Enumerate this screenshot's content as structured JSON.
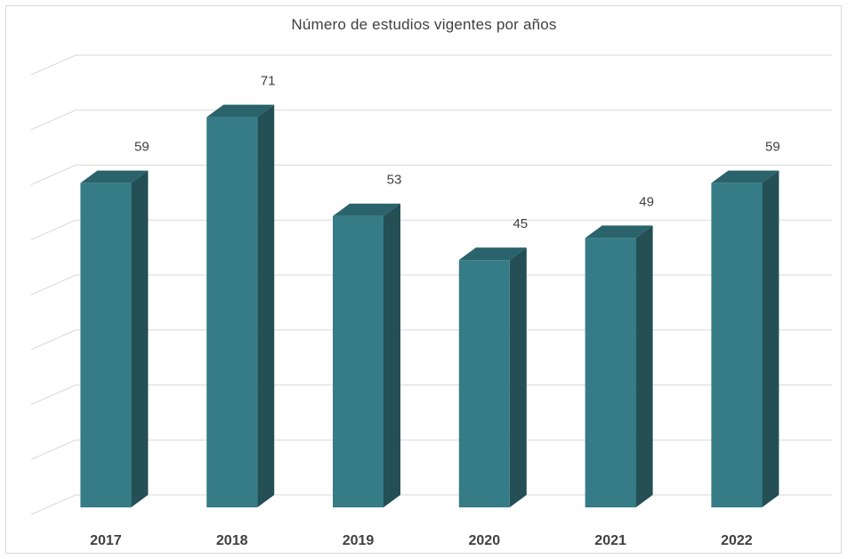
{
  "chart_data": {
    "type": "bar",
    "title": "Número de estudios vigentes por años",
    "categories": [
      "2017",
      "2018",
      "2019",
      "2020",
      "2021",
      "2022"
    ],
    "values": [
      59,
      71,
      53,
      45,
      49,
      59
    ],
    "ylim": [
      0,
      80
    ],
    "grid": true,
    "style": "3d-column",
    "colors": {
      "front": "#357C87",
      "side": "#234F55",
      "top": "#2A636B",
      "grid": "#d9d9d9"
    }
  }
}
